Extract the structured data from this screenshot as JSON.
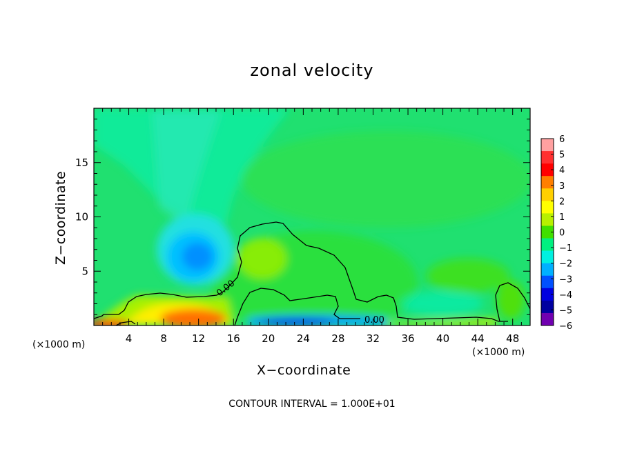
{
  "chart_data": {
    "type": "heatmap",
    "title": "zonal velocity",
    "xlabel": "X−coordinate",
    "ylabel": "Z−coordinate",
    "x_scale_left": "(×1000 m)",
    "x_scale_right": "(×1000 m)",
    "xlim": [
      0,
      50
    ],
    "ylim": [
      0,
      20
    ],
    "x_ticks": [
      4,
      8,
      12,
      16,
      20,
      24,
      28,
      32,
      36,
      40,
      44,
      48
    ],
    "x_tick_labels": [
      "4",
      "8",
      "12",
      "16",
      "20",
      "24",
      "28",
      "32",
      "36",
      "40",
      "44",
      "48"
    ],
    "y_ticks": [
      5,
      10,
      15
    ],
    "y_tick_labels": [
      "5",
      "10",
      "15"
    ],
    "colorbar": {
      "levels": [
        6,
        5,
        4,
        3,
        2,
        1,
        0,
        -1,
        -2,
        -3,
        -4,
        -5,
        -6
      ],
      "labels": [
        "6",
        "5",
        "4",
        "3",
        "2",
        "1",
        "0",
        "−1",
        "−2",
        "−3",
        "−4",
        "−5",
        "−6"
      ],
      "colors": [
        "#ffa0a0",
        "#ff3030",
        "#ff0000",
        "#ff7f00",
        "#ffd000",
        "#ffff00",
        "#b8f000",
        "#40e000",
        "#00f080",
        "#00f0e0",
        "#00b0ff",
        "#0050ff",
        "#0000e0",
        "#0000a0",
        "#7000b0"
      ]
    },
    "background_level": -1,
    "features": [
      {
        "name": "negative core",
        "x": 12.5,
        "z": 6.5,
        "value": -3
      },
      {
        "name": "positive core",
        "x": 19,
        "z": 6.5,
        "value": 1
      },
      {
        "name": "surface jet",
        "x": 12,
        "z": 0.8,
        "value": 5
      },
      {
        "name": "surface reverse flow",
        "x": 20,
        "z": 0.3,
        "value": -5
      }
    ],
    "contour_labels": [
      "0.00",
      "0.00"
    ],
    "contour_interval_text": "CONTOUR INTERVAL = 1.000E+01"
  }
}
